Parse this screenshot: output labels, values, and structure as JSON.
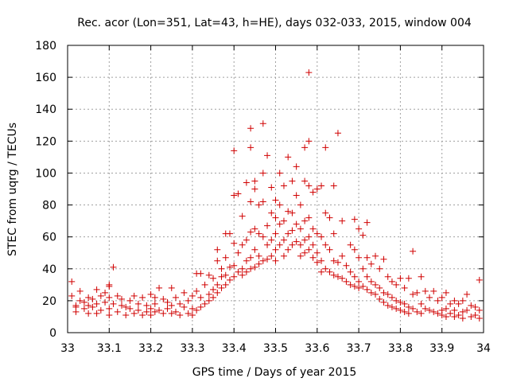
{
  "chart_data": {
    "type": "scatter",
    "title": "Rec. acor (Lon=351, Lat=43, h=HE), days 032-033, 2015, window 004",
    "xlabel": "GPS time / Days of year 2015",
    "ylabel": "STEC from uqrg / TECUs",
    "xlim": [
      33,
      34
    ],
    "ylim": [
      0,
      180
    ],
    "x_ticks": [
      33,
      33.1,
      33.2,
      33.3,
      33.4,
      33.5,
      33.6,
      33.7,
      33.8,
      33.9,
      34
    ],
    "x_tick_labels": [
      "33",
      "33.1",
      "33.2",
      "33.3",
      "33.4",
      "33.5",
      "33.6",
      "33.7",
      "33.8",
      "33.9",
      "34"
    ],
    "y_ticks": [
      0,
      20,
      40,
      60,
      80,
      100,
      120,
      140,
      160,
      180
    ],
    "y_tick_labels": [
      "0",
      "20",
      "40",
      "60",
      "80",
      "100",
      "120",
      "140",
      "160",
      "180"
    ],
    "grid": true,
    "marker": "plus",
    "marker_color": "#d00000",
    "series": [
      {
        "name": "STEC",
        "points": [
          [
            33.01,
            32
          ],
          [
            33.01,
            23
          ],
          [
            33.02,
            17
          ],
          [
            33.02,
            16
          ],
          [
            33.02,
            13
          ],
          [
            33.03,
            26
          ],
          [
            33.03,
            20
          ],
          [
            33.04,
            19
          ],
          [
            33.04,
            15
          ],
          [
            33.05,
            22
          ],
          [
            33.05,
            17
          ],
          [
            33.05,
            12
          ],
          [
            33.06,
            21
          ],
          [
            33.06,
            16
          ],
          [
            33.07,
            27
          ],
          [
            33.07,
            18
          ],
          [
            33.07,
            12
          ],
          [
            33.08,
            23
          ],
          [
            33.08,
            14
          ],
          [
            33.09,
            25
          ],
          [
            33.09,
            19
          ],
          [
            33.1,
            29
          ],
          [
            33.1,
            30
          ],
          [
            33.1,
            22
          ],
          [
            33.1,
            15
          ],
          [
            33.1,
            11
          ],
          [
            33.11,
            41
          ],
          [
            33.11,
            18
          ],
          [
            33.12,
            23
          ],
          [
            33.12,
            13
          ],
          [
            33.13,
            21
          ],
          [
            33.13,
            17
          ],
          [
            33.14,
            16
          ],
          [
            33.14,
            11
          ],
          [
            33.15,
            15
          ],
          [
            33.15,
            20
          ],
          [
            33.16,
            23
          ],
          [
            33.16,
            12
          ],
          [
            33.17,
            18
          ],
          [
            33.17,
            14
          ],
          [
            33.18,
            22
          ],
          [
            33.18,
            11
          ],
          [
            33.19,
            17
          ],
          [
            33.19,
            13
          ],
          [
            33.2,
            24
          ],
          [
            33.2,
            15
          ],
          [
            33.2,
            11
          ],
          [
            33.21,
            22
          ],
          [
            33.21,
            18
          ],
          [
            33.21,
            13
          ],
          [
            33.22,
            28
          ],
          [
            33.22,
            14
          ],
          [
            33.23,
            21
          ],
          [
            33.23,
            12
          ],
          [
            33.24,
            19
          ],
          [
            33.24,
            15
          ],
          [
            33.25,
            28
          ],
          [
            33.25,
            17
          ],
          [
            33.25,
            12
          ],
          [
            33.26,
            22
          ],
          [
            33.26,
            13
          ],
          [
            33.27,
            18
          ],
          [
            33.27,
            11
          ],
          [
            33.28,
            25
          ],
          [
            33.28,
            16
          ],
          [
            33.29,
            20
          ],
          [
            33.29,
            12
          ],
          [
            33.3,
            23
          ],
          [
            33.3,
            15
          ],
          [
            33.3,
            11
          ],
          [
            33.31,
            37
          ],
          [
            33.31,
            26
          ],
          [
            33.31,
            14
          ],
          [
            33.32,
            37
          ],
          [
            33.32,
            22
          ],
          [
            33.32,
            16
          ],
          [
            33.33,
            30
          ],
          [
            33.33,
            18
          ],
          [
            33.34,
            36
          ],
          [
            33.34,
            24
          ],
          [
            33.34,
            20
          ],
          [
            33.35,
            34
          ],
          [
            33.35,
            27
          ],
          [
            33.35,
            22
          ],
          [
            33.36,
            52
          ],
          [
            33.36,
            45
          ],
          [
            33.36,
            30
          ],
          [
            33.36,
            25
          ],
          [
            33.37,
            40
          ],
          [
            33.37,
            35
          ],
          [
            33.37,
            28
          ],
          [
            33.38,
            62
          ],
          [
            33.38,
            47
          ],
          [
            33.38,
            36
          ],
          [
            33.38,
            30
          ],
          [
            33.39,
            62
          ],
          [
            33.39,
            41
          ],
          [
            33.39,
            33
          ],
          [
            33.4,
            114
          ],
          [
            33.4,
            86
          ],
          [
            33.4,
            56
          ],
          [
            33.4,
            42
          ],
          [
            33.4,
            35
          ],
          [
            33.41,
            87
          ],
          [
            33.41,
            50
          ],
          [
            33.41,
            38
          ],
          [
            33.42,
            73
          ],
          [
            33.42,
            55
          ],
          [
            33.42,
            40
          ],
          [
            33.42,
            36
          ],
          [
            33.43,
            94
          ],
          [
            33.43,
            58
          ],
          [
            33.43,
            45
          ],
          [
            33.43,
            38
          ],
          [
            33.44,
            128
          ],
          [
            33.44,
            116
          ],
          [
            33.44,
            82
          ],
          [
            33.44,
            63
          ],
          [
            33.44,
            47
          ],
          [
            33.44,
            40
          ],
          [
            33.45,
            95
          ],
          [
            33.45,
            90
          ],
          [
            33.45,
            65
          ],
          [
            33.45,
            52
          ],
          [
            33.45,
            41
          ],
          [
            33.46,
            80
          ],
          [
            33.46,
            62
          ],
          [
            33.46,
            48
          ],
          [
            33.46,
            43
          ],
          [
            33.47,
            131
          ],
          [
            33.47,
            100
          ],
          [
            33.47,
            82
          ],
          [
            33.47,
            60
          ],
          [
            33.47,
            45
          ],
          [
            33.48,
            111
          ],
          [
            33.48,
            67
          ],
          [
            33.48,
            55
          ],
          [
            33.48,
            46
          ],
          [
            33.49,
            91
          ],
          [
            33.49,
            75
          ],
          [
            33.49,
            58
          ],
          [
            33.49,
            48
          ],
          [
            33.5,
            83
          ],
          [
            33.5,
            72
          ],
          [
            33.5,
            62
          ],
          [
            33.5,
            52
          ],
          [
            33.5,
            45
          ],
          [
            33.51,
            100
          ],
          [
            33.51,
            80
          ],
          [
            33.51,
            68
          ],
          [
            33.51,
            55
          ],
          [
            33.52,
            92
          ],
          [
            33.52,
            70
          ],
          [
            33.52,
            58
          ],
          [
            33.52,
            48
          ],
          [
            33.53,
            110
          ],
          [
            33.53,
            76
          ],
          [
            33.53,
            62
          ],
          [
            33.53,
            52
          ],
          [
            33.54,
            95
          ],
          [
            33.54,
            75
          ],
          [
            33.54,
            64
          ],
          [
            33.54,
            55
          ],
          [
            33.55,
            104
          ],
          [
            33.55,
            86
          ],
          [
            33.55,
            68
          ],
          [
            33.55,
            57
          ],
          [
            33.56,
            80
          ],
          [
            33.56,
            65
          ],
          [
            33.56,
            55
          ],
          [
            33.56,
            48
          ],
          [
            33.57,
            116
          ],
          [
            33.57,
            95
          ],
          [
            33.57,
            70
          ],
          [
            33.57,
            58
          ],
          [
            33.57,
            50
          ],
          [
            33.58,
            163
          ],
          [
            33.58,
            120
          ],
          [
            33.58,
            92
          ],
          [
            33.58,
            72
          ],
          [
            33.58,
            60
          ],
          [
            33.58,
            52
          ],
          [
            33.59,
            88
          ],
          [
            33.59,
            65
          ],
          [
            33.59,
            55
          ],
          [
            33.59,
            47
          ],
          [
            33.6,
            90
          ],
          [
            33.6,
            62
          ],
          [
            33.6,
            50
          ],
          [
            33.6,
            44
          ],
          [
            33.61,
            92
          ],
          [
            33.61,
            60
          ],
          [
            33.61,
            45
          ],
          [
            33.61,
            38
          ],
          [
            33.62,
            116
          ],
          [
            33.62,
            75
          ],
          [
            33.62,
            55
          ],
          [
            33.62,
            40
          ],
          [
            33.63,
            72
          ],
          [
            33.63,
            52
          ],
          [
            33.63,
            38
          ],
          [
            33.64,
            92
          ],
          [
            33.64,
            62
          ],
          [
            33.64,
            45
          ],
          [
            33.64,
            36
          ],
          [
            33.65,
            125
          ],
          [
            33.65,
            44
          ],
          [
            33.65,
            35
          ],
          [
            33.66,
            70
          ],
          [
            33.66,
            48
          ],
          [
            33.66,
            34
          ],
          [
            33.67,
            42
          ],
          [
            33.67,
            32
          ],
          [
            33.68,
            55
          ],
          [
            33.68,
            38
          ],
          [
            33.68,
            30
          ],
          [
            33.69,
            71
          ],
          [
            33.69,
            52
          ],
          [
            33.69,
            35
          ],
          [
            33.69,
            29
          ],
          [
            33.7,
            65
          ],
          [
            33.7,
            47
          ],
          [
            33.7,
            32
          ],
          [
            33.7,
            28
          ],
          [
            33.71,
            61
          ],
          [
            33.71,
            40
          ],
          [
            33.71,
            29
          ],
          [
            33.72,
            69
          ],
          [
            33.72,
            47
          ],
          [
            33.72,
            35
          ],
          [
            33.72,
            27
          ],
          [
            33.73,
            43
          ],
          [
            33.73,
            32
          ],
          [
            33.73,
            25
          ],
          [
            33.74,
            48
          ],
          [
            33.74,
            30
          ],
          [
            33.74,
            24
          ],
          [
            33.75,
            40
          ],
          [
            33.75,
            28
          ],
          [
            33.75,
            21
          ],
          [
            33.76,
            46
          ],
          [
            33.76,
            25
          ],
          [
            33.76,
            19
          ],
          [
            33.77,
            35
          ],
          [
            33.77,
            24
          ],
          [
            33.77,
            17
          ],
          [
            33.78,
            32
          ],
          [
            33.78,
            22
          ],
          [
            33.78,
            16
          ],
          [
            33.79,
            30
          ],
          [
            33.79,
            20
          ],
          [
            33.79,
            15
          ],
          [
            33.8,
            34
          ],
          [
            33.8,
            19
          ],
          [
            33.8,
            14
          ],
          [
            33.81,
            28
          ],
          [
            33.81,
            18
          ],
          [
            33.81,
            13
          ],
          [
            33.82,
            34
          ],
          [
            33.82,
            16
          ],
          [
            33.82,
            12
          ],
          [
            33.83,
            51
          ],
          [
            33.83,
            24
          ],
          [
            33.83,
            15
          ],
          [
            33.84,
            25
          ],
          [
            33.84,
            13
          ],
          [
            33.85,
            35
          ],
          [
            33.85,
            18
          ],
          [
            33.85,
            12
          ],
          [
            33.86,
            26
          ],
          [
            33.86,
            15
          ],
          [
            33.87,
            22
          ],
          [
            33.87,
            14
          ],
          [
            33.88,
            26
          ],
          [
            33.88,
            13
          ],
          [
            33.89,
            20
          ],
          [
            33.89,
            12
          ],
          [
            33.9,
            22
          ],
          [
            33.9,
            14
          ],
          [
            33.9,
            11
          ],
          [
            33.91,
            25
          ],
          [
            33.91,
            15
          ],
          [
            33.91,
            10
          ],
          [
            33.92,
            18
          ],
          [
            33.92,
            12
          ],
          [
            33.93,
            20
          ],
          [
            33.93,
            14
          ],
          [
            33.93,
            10
          ],
          [
            33.94,
            18
          ],
          [
            33.94,
            11
          ],
          [
            33.95,
            20
          ],
          [
            33.95,
            13
          ],
          [
            33.95,
            9
          ],
          [
            33.96,
            24
          ],
          [
            33.96,
            14
          ],
          [
            33.97,
            17
          ],
          [
            33.97,
            10
          ],
          [
            33.98,
            16
          ],
          [
            33.98,
            11
          ],
          [
            33.99,
            33
          ],
          [
            33.99,
            14
          ],
          [
            33.99,
            9
          ]
        ]
      }
    ]
  }
}
